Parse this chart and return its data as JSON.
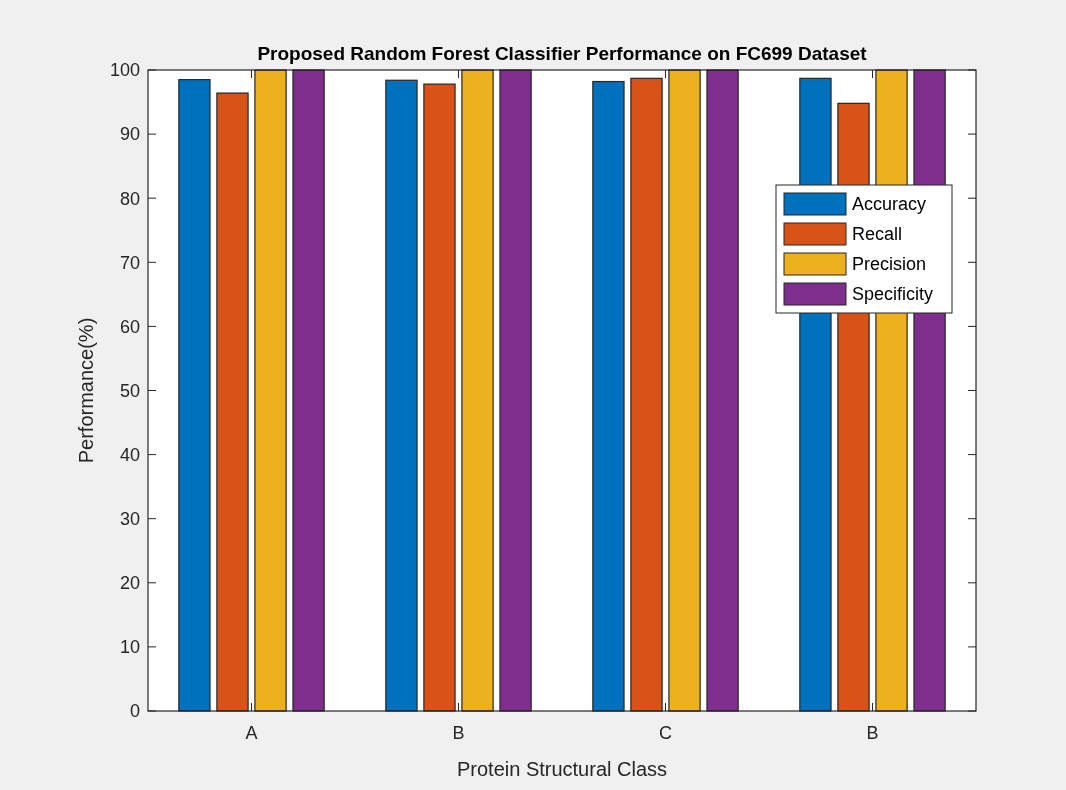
{
  "chart_data": {
    "type": "bar",
    "title": "Proposed Random Forest Classifier Performance on FC699 Dataset",
    "xlabel": "Protein Structural Class",
    "ylabel": "Performance(%)",
    "categories": [
      "A",
      "B",
      "C",
      "B"
    ],
    "series": [
      {
        "name": "Accuracy",
        "color": "#0072bd",
        "values": [
          98.5,
          98.4,
          98.2,
          98.7
        ]
      },
      {
        "name": "Recall",
        "color": "#d95319",
        "values": [
          96.4,
          97.8,
          98.7,
          94.8
        ]
      },
      {
        "name": "Precision",
        "color": "#edb120",
        "values": [
          100,
          100,
          100,
          100
        ]
      },
      {
        "name": "Specificity",
        "color": "#7e2f8e",
        "values": [
          100,
          100,
          100,
          100
        ]
      }
    ],
    "ylim": [
      0,
      100
    ],
    "yticks": [
      0,
      10,
      20,
      30,
      40,
      50,
      60,
      70,
      80,
      90,
      100
    ],
    "grid": false,
    "legend": "right"
  }
}
